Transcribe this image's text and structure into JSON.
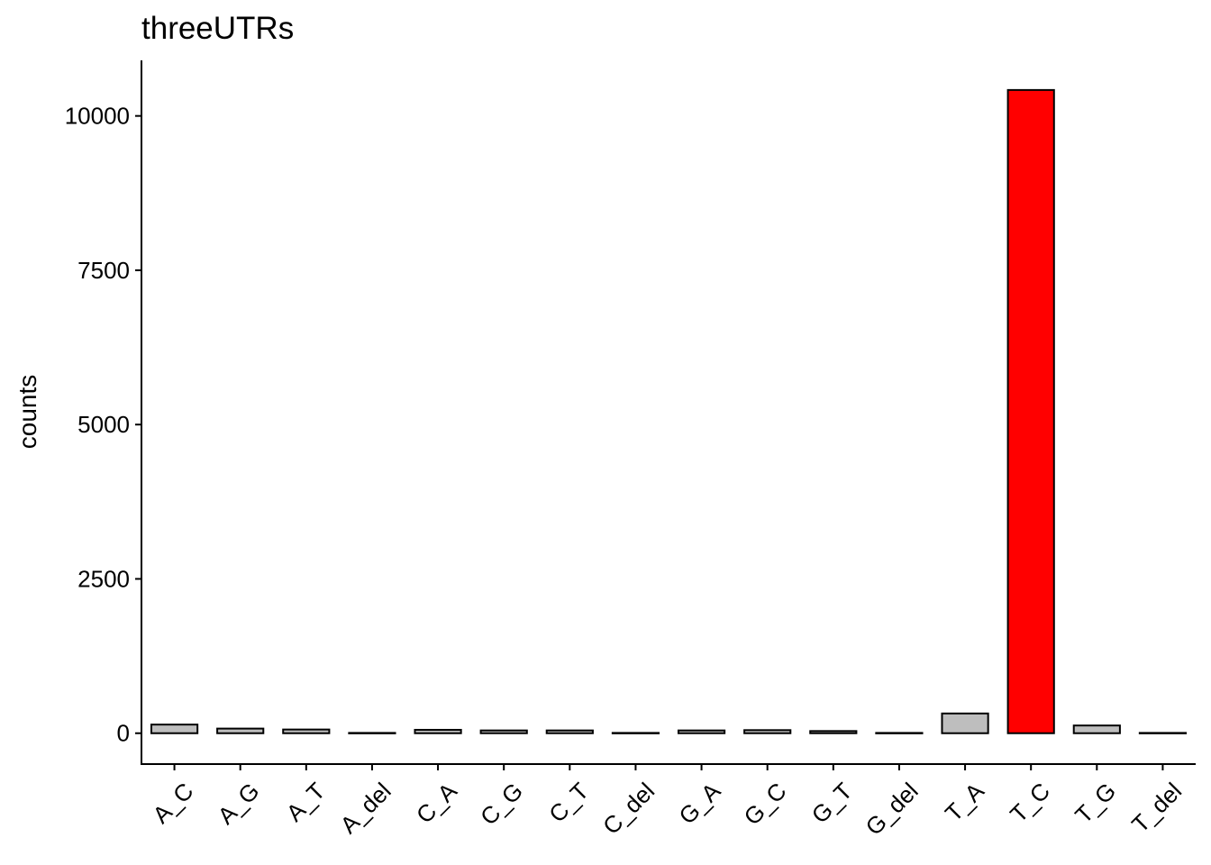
{
  "chart_data": {
    "type": "bar",
    "title": "threeUTRs",
    "xlabel": "",
    "ylabel": "counts",
    "categories": [
      "A_C",
      "A_G",
      "A_T",
      "A_del",
      "C_A",
      "C_G",
      "C_T",
      "C_del",
      "G_A",
      "G_C",
      "G_T",
      "G_del",
      "T_A",
      "T_C",
      "T_G",
      "T_del"
    ],
    "values": [
      140,
      75,
      60,
      5,
      55,
      45,
      45,
      5,
      45,
      50,
      35,
      5,
      320,
      10420,
      125,
      5
    ],
    "colors": [
      "#bebebe",
      "#bebebe",
      "#bebebe",
      "#bebebe",
      "#bebebe",
      "#bebebe",
      "#bebebe",
      "#bebebe",
      "#bebebe",
      "#bebebe",
      "#bebebe",
      "#bebebe",
      "#bebebe",
      "#ff0000",
      "#bebebe",
      "#bebebe"
    ],
    "yticks": [
      0,
      2500,
      5000,
      7500,
      10000
    ],
    "ylim": [
      -500,
      10900
    ],
    "grid": false,
    "legend": "none"
  }
}
